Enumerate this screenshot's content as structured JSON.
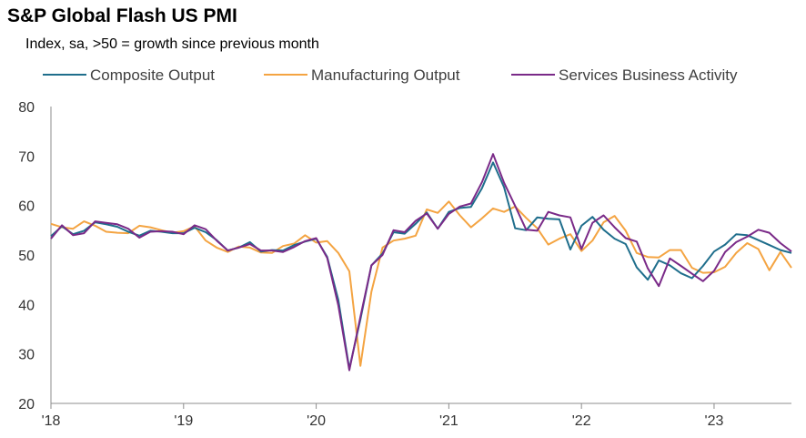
{
  "chart_data": {
    "type": "line",
    "title": "S&P Global Flash US PMI",
    "subtitle": "Index, sa, >50 = growth  since previous  month",
    "xlabel": "",
    "ylabel": "",
    "ylim": [
      20,
      80
    ],
    "yticks": [
      20,
      30,
      40,
      50,
      60,
      70,
      80
    ],
    "xticks": [
      {
        "label": "'18",
        "index": 0
      },
      {
        "label": "'19",
        "index": 12
      },
      {
        "label": "'20",
        "index": 24
      },
      {
        "label": "'21",
        "index": 36
      },
      {
        "label": "'22",
        "index": 48
      },
      {
        "label": "'23",
        "index": 60
      }
    ],
    "x_start": "2018-01",
    "x_end": "2023-08",
    "legend_position": "top",
    "series": [
      {
        "name": "Composite Output",
        "color": "#1f6e8c",
        "values": [
          53.8,
          55.8,
          54.2,
          54.9,
          56.6,
          56.2,
          55.7,
          54.7,
          53.9,
          54.9,
          54.7,
          54.4,
          54.4,
          55.5,
          54.6,
          53.0,
          50.9,
          51.5,
          52.6,
          50.7,
          51.0,
          50.9,
          52.0,
          52.7,
          53.3,
          49.6,
          40.9,
          27.0,
          37.0,
          47.9,
          50.3,
          54.6,
          54.3,
          56.3,
          58.6,
          55.3,
          58.7,
          59.5,
          59.7,
          63.5,
          68.7,
          63.7,
          55.4,
          55.0,
          57.6,
          57.3,
          57.2,
          51.1,
          55.9,
          57.7,
          55.1,
          53.3,
          52.2,
          47.5,
          45.0,
          48.9,
          47.9,
          46.3,
          45.3,
          47.8,
          50.7,
          52.1,
          54.2,
          54.0,
          53.0,
          52.0,
          51.0,
          50.4
        ]
      },
      {
        "name": "Manufacturing Output",
        "color": "#f4a442",
        "values": [
          56.3,
          55.6,
          55.3,
          56.8,
          55.9,
          54.7,
          54.5,
          54.4,
          55.9,
          55.6,
          55.0,
          54.5,
          54.8,
          55.8,
          52.9,
          51.5,
          50.6,
          51.7,
          51.5,
          50.5,
          50.4,
          51.8,
          52.3,
          54.0,
          52.5,
          52.8,
          50.4,
          46.7,
          27.6,
          42.6,
          51.5,
          52.9,
          53.3,
          53.9,
          59.2,
          58.5,
          60.8,
          58.0,
          55.6,
          57.4,
          59.4,
          58.7,
          59.8,
          57.5,
          55.4,
          52.1,
          53.3,
          54.2,
          50.8,
          52.9,
          56.6,
          57.9,
          54.9,
          50.4,
          49.6,
          49.5,
          51.0,
          51.0,
          47.4,
          46.4,
          46.5,
          47.6,
          50.4,
          52.4,
          51.2,
          46.9,
          50.6,
          47.4
        ]
      },
      {
        "name": "Services Business Activity",
        "color": "#7a2a88",
        "values": [
          53.3,
          56.0,
          54.0,
          54.4,
          56.8,
          56.5,
          56.2,
          55.3,
          53.5,
          54.7,
          54.8,
          54.7,
          54.2,
          56.0,
          55.2,
          52.9,
          50.9,
          51.5,
          52.2,
          50.9,
          50.9,
          50.6,
          51.6,
          52.8,
          53.4,
          49.4,
          39.8,
          26.7,
          37.5,
          47.9,
          50.0,
          55.0,
          54.6,
          56.9,
          58.4,
          55.3,
          58.3,
          59.8,
          60.4,
          64.7,
          70.4,
          64.6,
          59.9,
          55.1,
          54.9,
          58.7,
          58.0,
          57.6,
          51.2,
          56.5,
          58.0,
          55.6,
          53.4,
          52.7,
          47.3,
          43.7,
          49.3,
          47.8,
          46.2,
          44.7,
          46.8,
          50.6,
          52.6,
          53.7,
          55.1,
          54.5,
          52.4,
          50.7
        ]
      }
    ]
  }
}
